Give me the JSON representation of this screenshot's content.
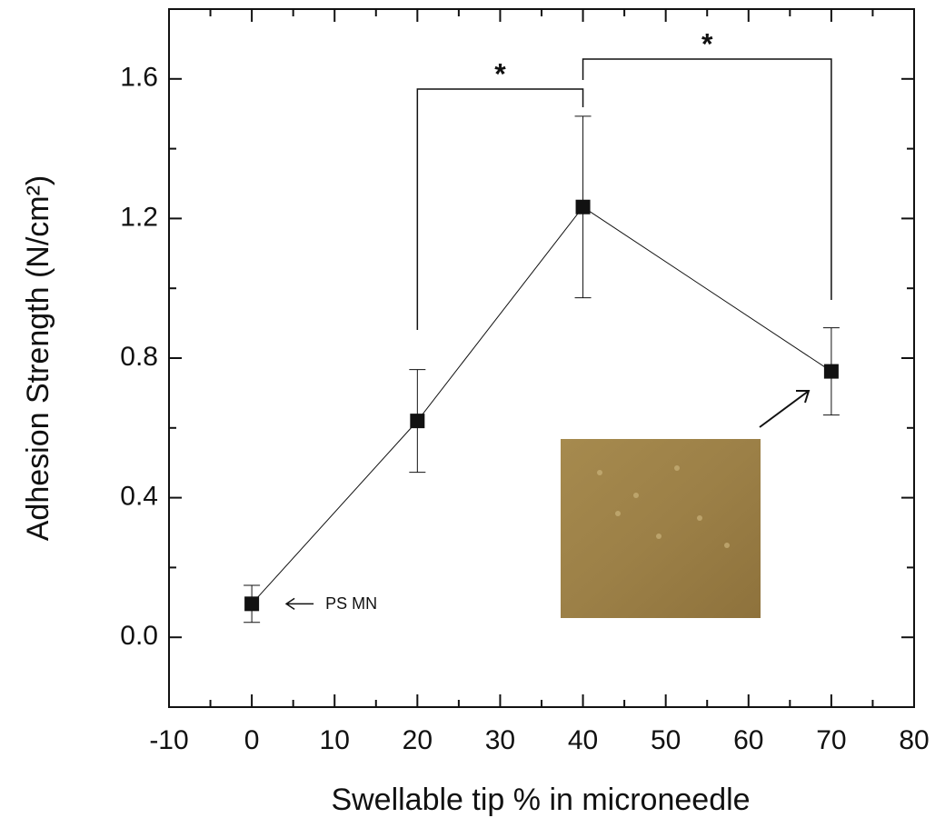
{
  "chart_data": {
    "type": "line",
    "x_label": "Swellable tip % in microneedle",
    "y_label": "Adhesion Strength (N/cm²)",
    "x": [
      0,
      20,
      40,
      70
    ],
    "series": [
      {
        "color": "#111111",
        "values": [
          0.096,
          0.62,
          1.233,
          0.762
        ],
        "errors": [
          0.053,
          0.147,
          0.26,
          0.125
        ]
      }
    ],
    "xlim": [
      -10,
      80
    ],
    "xticks": [
      -10,
      0,
      10,
      20,
      30,
      40,
      50,
      60,
      70,
      80
    ],
    "x_minor_ticks": [
      -5,
      5,
      15,
      25,
      35,
      45,
      55,
      65,
      75
    ],
    "ylim": [
      -0.2,
      1.8
    ],
    "yticks": [
      {
        "value": 0,
        "label": "0.0"
      },
      0.4,
      0.8,
      1.2,
      1.6
    ],
    "y_minor_ticks": [
      0.2,
      0.6,
      1.0,
      1.4
    ],
    "annotations": [
      {
        "text": "PS MN",
        "x": 0,
        "y": 0.096
      }
    ],
    "significance": [
      {
        "from": 20,
        "to": 40,
        "label": "*"
      },
      {
        "from": 40,
        "to": 70,
        "label": "*"
      }
    ]
  }
}
